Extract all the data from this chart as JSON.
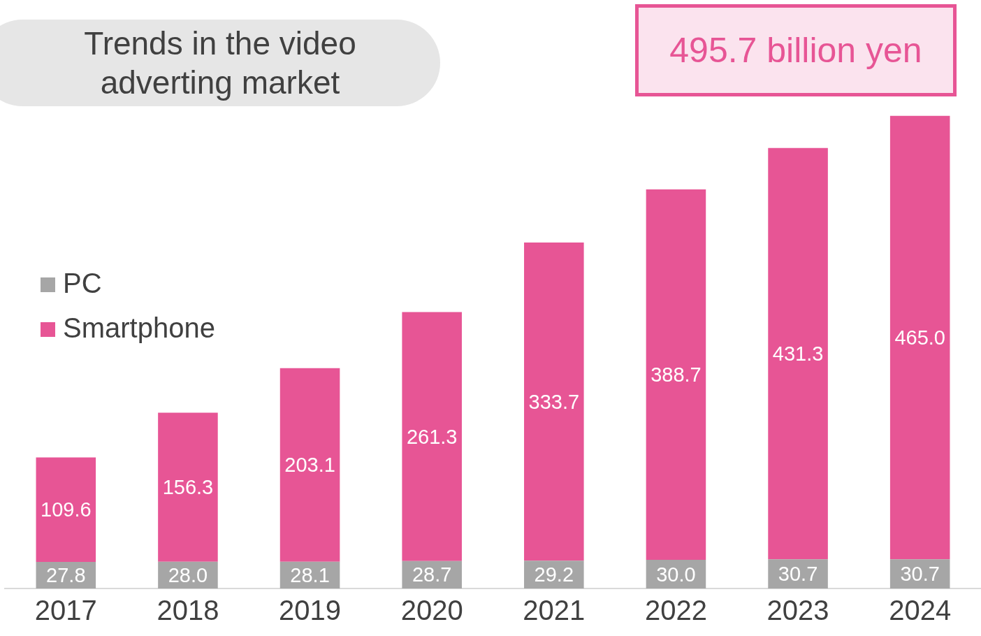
{
  "chart_data": {
    "type": "bar",
    "title": "Trends in the video adverting market",
    "categories": [
      "2017",
      "2018",
      "2019",
      "2020",
      "2021",
      "2022",
      "2023",
      "2024"
    ],
    "stacked": true,
    "legend": "left",
    "grid": false,
    "annotations": [
      "495.7 billion yen"
    ],
    "series": [
      {
        "name": "PC",
        "color": "#a6a6a6",
        "values": [
          27.8,
          28.0,
          28.1,
          28.7,
          29.2,
          30.0,
          30.7,
          30.7
        ],
        "value_labels": [
          "27.8",
          "28.0",
          "28.1",
          "28.7",
          "29.2",
          "30.0",
          "30.7",
          "30.7"
        ]
      },
      {
        "name": "Smartphone",
        "color": "#e75595",
        "values": [
          109.6,
          156.3,
          203.1,
          261.3,
          333.7,
          388.7,
          431.3,
          465.0
        ],
        "value_labels": [
          "109.6",
          "156.3",
          "203.1",
          "261.3",
          "333.7",
          "388.7",
          "431.3",
          "465.0"
        ]
      }
    ]
  }
}
